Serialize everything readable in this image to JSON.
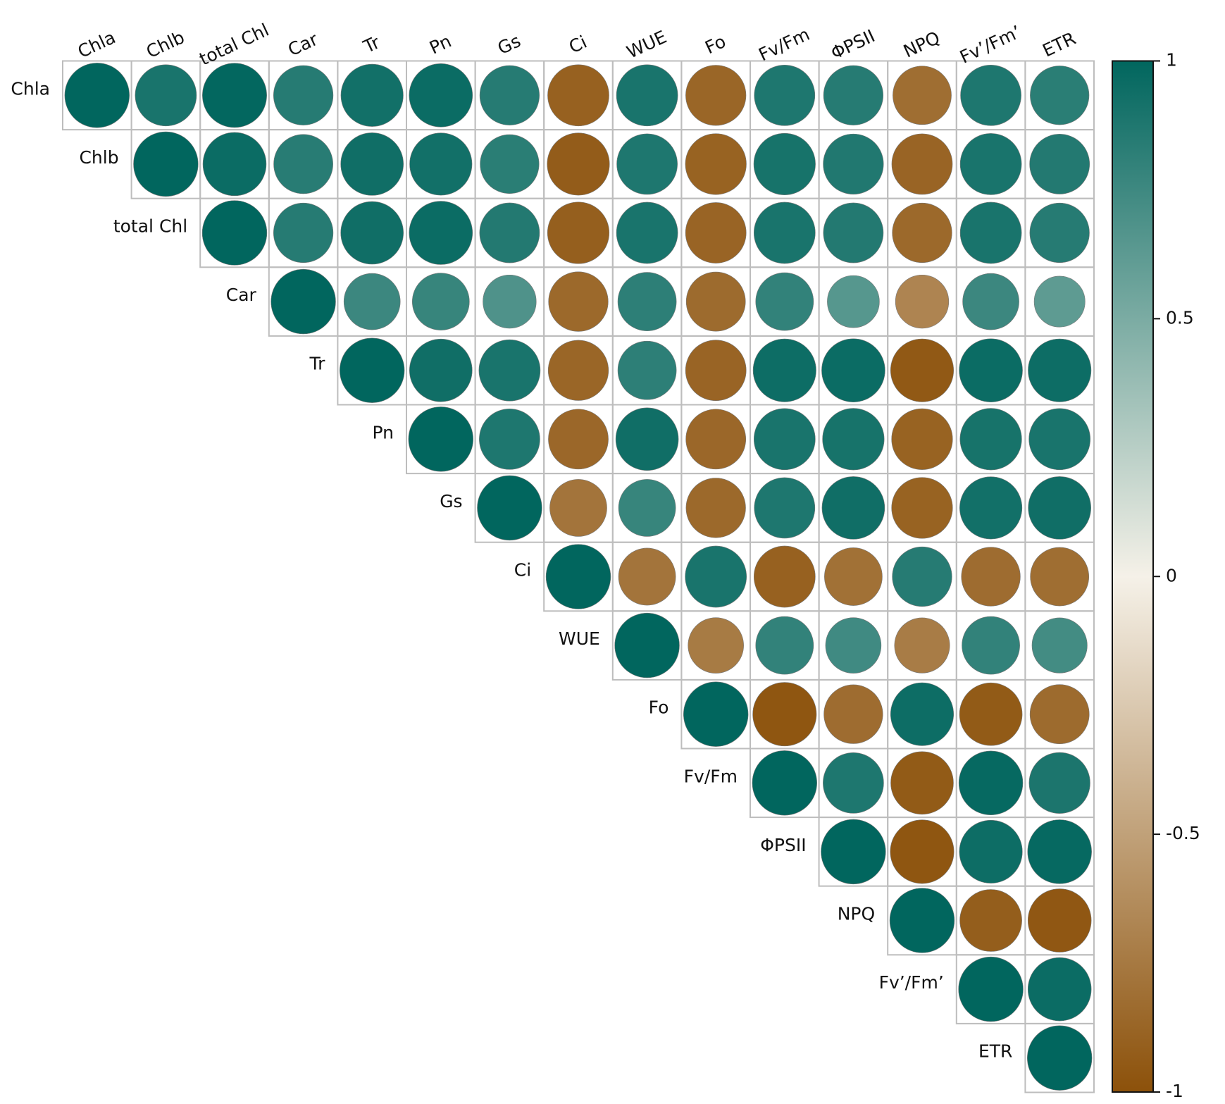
{
  "chart_data": {
    "type": "correlation-circles",
    "variables": [
      "Chla",
      "Chlb",
      "total Chl",
      "Car",
      "Tr",
      "Pn",
      "Gs",
      "Ci",
      "WUE",
      "Fo",
      "Fv/Fm",
      "ΦPSII",
      "NPQ",
      "Fv’/Fm’",
      "ETR"
    ],
    "matrix": [
      [
        1,
        0.9,
        0.99,
        0.85,
        0.93,
        0.96,
        0.85,
        -0.9,
        0.9,
        -0.87,
        0.88,
        0.85,
        -0.82,
        0.88,
        0.83
      ],
      [
        null,
        1,
        0.96,
        0.84,
        0.94,
        0.93,
        0.83,
        -0.93,
        0.88,
        -0.89,
        0.91,
        0.87,
        -0.88,
        0.9,
        0.86
      ],
      [
        null,
        null,
        1,
        0.85,
        0.94,
        0.96,
        0.86,
        -0.91,
        0.9,
        -0.88,
        0.9,
        0.86,
        -0.85,
        0.9,
        0.85
      ],
      [
        null,
        null,
        null,
        1,
        0.76,
        0.78,
        0.68,
        -0.85,
        0.82,
        -0.84,
        0.8,
        0.65,
        -0.68,
        0.76,
        0.62
      ],
      [
        null,
        null,
        null,
        null,
        1,
        0.94,
        0.9,
        -0.87,
        0.82,
        -0.88,
        0.95,
        0.96,
        -0.95,
        0.96,
        0.95
      ],
      [
        null,
        null,
        null,
        null,
        null,
        1,
        0.88,
        -0.86,
        0.94,
        -0.86,
        0.9,
        0.91,
        -0.89,
        0.91,
        0.9
      ],
      [
        null,
        null,
        null,
        null,
        null,
        null,
        1,
        -0.78,
        0.78,
        -0.85,
        0.88,
        0.94,
        -0.89,
        0.93,
        0.94
      ],
      [
        null,
        null,
        null,
        null,
        null,
        null,
        null,
        1,
        -0.78,
        0.9,
        -0.9,
        -0.8,
        0.85,
        -0.83,
        -0.82
      ],
      [
        null,
        null,
        null,
        null,
        null,
        null,
        null,
        null,
        1,
        -0.74,
        0.8,
        0.74,
        -0.73,
        0.8,
        0.73
      ],
      [
        null,
        null,
        null,
        null,
        null,
        null,
        null,
        null,
        null,
        1,
        -0.97,
        -0.83,
        0.95,
        -0.94,
        -0.84
      ],
      [
        null,
        null,
        null,
        null,
        null,
        null,
        null,
        null,
        null,
        null,
        1,
        0.88,
        -0.94,
        0.98,
        0.89
      ],
      [
        null,
        null,
        null,
        null,
        null,
        null,
        null,
        null,
        null,
        null,
        null,
        1,
        -0.97,
        0.95,
        0.98
      ],
      [
        null,
        null,
        null,
        null,
        null,
        null,
        null,
        null,
        null,
        null,
        null,
        null,
        1,
        -0.92,
        -0.96
      ],
      [
        null,
        null,
        null,
        null,
        null,
        null,
        null,
        null,
        null,
        null,
        null,
        null,
        null,
        1,
        0.96
      ],
      [
        null,
        null,
        null,
        null,
        null,
        null,
        null,
        null,
        null,
        null,
        null,
        null,
        null,
        null,
        1
      ]
    ],
    "colors": [
      "#8c510a",
      "#f5f1e8",
      "#01665e"
    ],
    "clim": [
      -1,
      1
    ],
    "cticks": [
      1,
      0.5,
      0,
      -0.5,
      -1
    ]
  }
}
